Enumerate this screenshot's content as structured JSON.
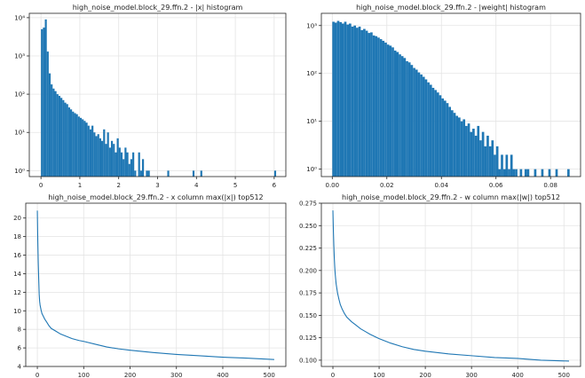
{
  "chart_data": [
    {
      "type": "bar",
      "title": "high_noise_model.block_29.ffn.2 - |x| histogram",
      "yscale": "log",
      "xlim": [
        -0.3,
        6.3
      ],
      "ylim": [
        0.7,
        13000
      ],
      "xticks": [
        0,
        1,
        2,
        3,
        4,
        5,
        6
      ],
      "xtick_labels": [
        "0",
        "1",
        "2",
        "3",
        "4",
        "5",
        "6"
      ],
      "yticks": [
        1,
        10,
        100,
        1000,
        10000
      ],
      "ytick_labels": [
        "10⁰",
        "10¹",
        "10²",
        "10³",
        "10⁴"
      ],
      "grid": true,
      "color": "#1f77b4",
      "bin_width": 0.05,
      "bins_x": [
        0.0,
        0.05,
        0.1,
        0.15,
        0.2,
        0.25,
        0.3,
        0.35,
        0.4,
        0.45,
        0.5,
        0.55,
        0.6,
        0.65,
        0.7,
        0.75,
        0.8,
        0.85,
        0.9,
        0.95,
        1.0,
        1.05,
        1.1,
        1.15,
        1.2,
        1.25,
        1.3,
        1.35,
        1.4,
        1.45,
        1.5,
        1.55,
        1.6,
        1.65,
        1.7,
        1.75,
        1.8,
        1.85,
        1.9,
        1.95,
        2.0,
        2.05,
        2.1,
        2.15,
        2.2,
        2.25,
        2.3,
        2.35,
        2.4,
        2.5,
        2.55,
        2.6,
        2.7,
        2.75,
        3.25,
        3.9,
        4.1,
        6.0
      ],
      "values": [
        5000,
        5500,
        9000,
        1300,
        350,
        180,
        140,
        120,
        100,
        90,
        80,
        70,
        60,
        55,
        45,
        40,
        35,
        32,
        30,
        26,
        24,
        22,
        20,
        18,
        15,
        12,
        15,
        10,
        8,
        9,
        7,
        6,
        12,
        5,
        10,
        4,
        6,
        5,
        3,
        7,
        4,
        3,
        2,
        4,
        3,
        1.5,
        2,
        3,
        1,
        3,
        1,
        2,
        1,
        1,
        1,
        1,
        1,
        1
      ]
    },
    {
      "type": "bar",
      "title": "high_noise_model.block_29.ffn.2 - |weight| histogram",
      "yscale": "log",
      "xlim": [
        -0.004,
        0.091
      ],
      "ylim": [
        0.7,
        1800
      ],
      "xticks": [
        0.0,
        0.02,
        0.04,
        0.06,
        0.08
      ],
      "xtick_labels": [
        "0.00",
        "0.02",
        "0.04",
        "0.06",
        "0.08"
      ],
      "yticks": [
        1,
        10,
        100,
        1000
      ],
      "ytick_labels": [
        "10⁰",
        "10¹",
        "10²",
        "10³"
      ],
      "grid": true,
      "color": "#1f77b4",
      "bin_width": 0.00087,
      "bins_x": [
        0.0,
        0.00087,
        0.00174,
        0.00261,
        0.00348,
        0.00435,
        0.00522,
        0.00609,
        0.00696,
        0.00783,
        0.0087,
        0.00957,
        0.01044,
        0.01131,
        0.01218,
        0.01305,
        0.01392,
        0.01479,
        0.01566,
        0.01653,
        0.0174,
        0.01827,
        0.01914,
        0.02001,
        0.02088,
        0.02175,
        0.02262,
        0.02349,
        0.02436,
        0.02523,
        0.0261,
        0.02697,
        0.02784,
        0.02871,
        0.02958,
        0.03045,
        0.03132,
        0.03219,
        0.03306,
        0.03393,
        0.0348,
        0.03567,
        0.03654,
        0.03741,
        0.03828,
        0.03915,
        0.04002,
        0.04089,
        0.04176,
        0.04263,
        0.0435,
        0.04437,
        0.04524,
        0.04611,
        0.04698,
        0.04785,
        0.04872,
        0.04959,
        0.05046,
        0.05133,
        0.0522,
        0.05307,
        0.05394,
        0.05481,
        0.05568,
        0.05655,
        0.05742,
        0.05829,
        0.05916,
        0.06003,
        0.0609,
        0.06177,
        0.06264,
        0.06351,
        0.06438,
        0.06525,
        0.06612,
        0.06699,
        0.06786,
        0.06873,
        0.0696,
        0.07047,
        0.07134,
        0.07221,
        0.07308,
        0.07395,
        0.07482,
        0.07569,
        0.07656,
        0.07743,
        0.0783,
        0.07917,
        0.08004,
        0.08091,
        0.08178,
        0.08265,
        0.08352,
        0.08439,
        0.08526,
        0.08613
      ],
      "values": [
        1200,
        1150,
        1250,
        1180,
        1100,
        1200,
        1050,
        1100,
        950,
        1000,
        900,
        950,
        800,
        850,
        780,
        700,
        720,
        620,
        600,
        560,
        520,
        480,
        440,
        400,
        380,
        350,
        300,
        280,
        250,
        230,
        210,
        180,
        170,
        150,
        130,
        120,
        105,
        95,
        85,
        75,
        65,
        58,
        50,
        45,
        40,
        35,
        30,
        27,
        24,
        20,
        17,
        15,
        13,
        12,
        10,
        11,
        8,
        9,
        6,
        7,
        5,
        8,
        4,
        6,
        3,
        5,
        3,
        4,
        2,
        3,
        1,
        2,
        1,
        2,
        1,
        2,
        1,
        1,
        0,
        1,
        0,
        1,
        1,
        0,
        0,
        1,
        0,
        0,
        1,
        0,
        0,
        1,
        0,
        0,
        1,
        0,
        0,
        0,
        0,
        1
      ]
    },
    {
      "type": "line",
      "title": "high_noise_model.block_29.ffn.2 - x column max(|x|) top512",
      "xlim": [
        -25,
        536
      ],
      "ylim": [
        4,
        21.6
      ],
      "xticks": [
        0,
        100,
        200,
        300,
        400,
        500
      ],
      "xtick_labels": [
        "0",
        "100",
        "200",
        "300",
        "400",
        "500"
      ],
      "yticks": [
        4,
        6,
        8,
        10,
        12,
        14,
        16,
        18,
        20
      ],
      "ytick_labels": [
        "4",
        "6",
        "8",
        "10",
        "12",
        "14",
        "16",
        "18",
        "20"
      ],
      "grid": true,
      "color": "#1f77b4",
      "x": [
        0,
        1,
        2,
        3,
        4,
        5,
        6,
        8,
        10,
        13,
        16,
        20,
        25,
        30,
        40,
        50,
        60,
        75,
        90,
        100,
        125,
        150,
        175,
        200,
        250,
        300,
        350,
        400,
        450,
        511
      ],
      "y": [
        20.8,
        17.5,
        15.2,
        13.4,
        11.8,
        11.0,
        10.6,
        10.1,
        9.7,
        9.4,
        9.1,
        8.8,
        8.4,
        8.1,
        7.8,
        7.5,
        7.3,
        7.0,
        6.8,
        6.7,
        6.4,
        6.1,
        5.9,
        5.75,
        5.5,
        5.3,
        5.15,
        5.0,
        4.9,
        4.75
      ]
    },
    {
      "type": "line",
      "title": "high_noise_model.block_29.ffn.2 - w column max(|w|) top512",
      "xlim": [
        -25,
        536
      ],
      "ylim": [
        0.093,
        0.275
      ],
      "xticks": [
        0,
        100,
        200,
        300,
        400,
        500
      ],
      "xtick_labels": [
        "0",
        "100",
        "200",
        "300",
        "400",
        "500"
      ],
      "yticks": [
        0.1,
        0.125,
        0.15,
        0.175,
        0.2,
        0.225,
        0.25,
        0.275
      ],
      "ytick_labels": [
        "0.100",
        "0.125",
        "0.150",
        "0.175",
        "0.200",
        "0.225",
        "0.250",
        "0.275"
      ],
      "grid": true,
      "color": "#1f77b4",
      "x": [
        0,
        1,
        2,
        3,
        4,
        5,
        7,
        10,
        13,
        16,
        20,
        25,
        30,
        40,
        50,
        60,
        70,
        80,
        100,
        125,
        150,
        175,
        200,
        250,
        300,
        350,
        400,
        450,
        511
      ],
      "y": [
        0.267,
        0.245,
        0.228,
        0.214,
        0.204,
        0.196,
        0.185,
        0.175,
        0.168,
        0.162,
        0.157,
        0.152,
        0.148,
        0.143,
        0.139,
        0.135,
        0.132,
        0.129,
        0.124,
        0.119,
        0.115,
        0.112,
        0.11,
        0.107,
        0.105,
        0.103,
        0.102,
        0.1,
        0.099
      ]
    }
  ]
}
